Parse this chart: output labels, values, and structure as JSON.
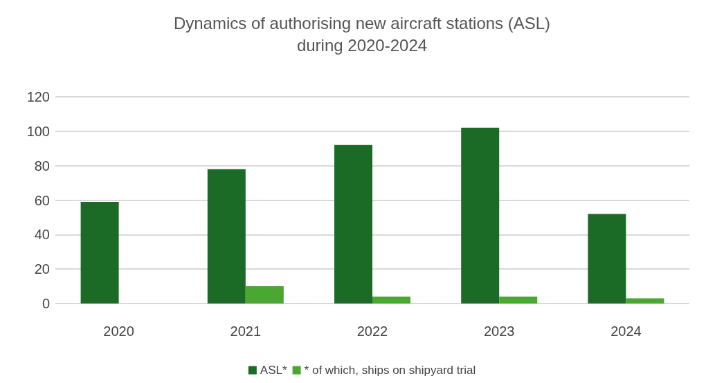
{
  "chart_data": {
    "type": "bar",
    "title": "Dynamics of authorising new aircraft stations (ASL)\nduring 2020-2024",
    "categories": [
      "2020",
      "2021",
      "2022",
      "2023",
      "2024"
    ],
    "series": [
      {
        "name": "ASL*",
        "color": "#1b6b27",
        "values": [
          59,
          78,
          92,
          102,
          52
        ]
      },
      {
        "name": "* of which, ships on shipyard trial",
        "color": "#4aa832",
        "values": [
          0,
          10,
          4,
          4,
          3
        ]
      }
    ],
    "ylim": [
      0,
      120
    ],
    "yticks": [
      0,
      20,
      40,
      60,
      80,
      100,
      120
    ],
    "grid": true,
    "legend": "bottom"
  }
}
